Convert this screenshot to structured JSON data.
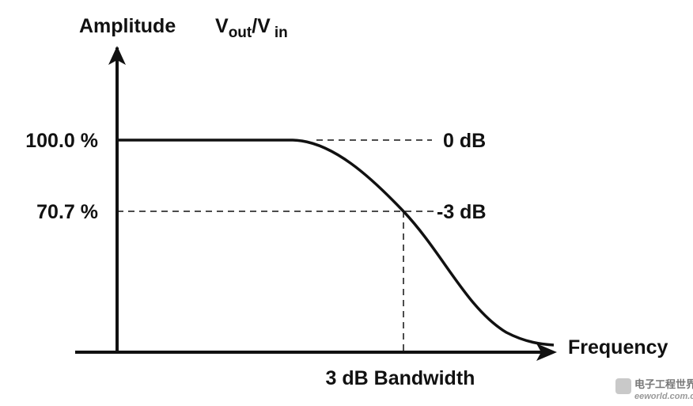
{
  "axes": {
    "y_label": "Amplitude",
    "ratio_label": {
      "numerator": "V",
      "numerator_sub": "out",
      "denominator": "/V",
      "denominator_sub": "in"
    },
    "x_label": "Frequency"
  },
  "levels": [
    {
      "label": "100.0 %",
      "db": "0 dB"
    },
    {
      "label": "70.7 %",
      "db": "-3 dB"
    }
  ],
  "bandwidth_label": "3 dB Bandwidth",
  "watermark": {
    "site": "eeworld.com.cn",
    "name": "电子工程世界"
  }
}
